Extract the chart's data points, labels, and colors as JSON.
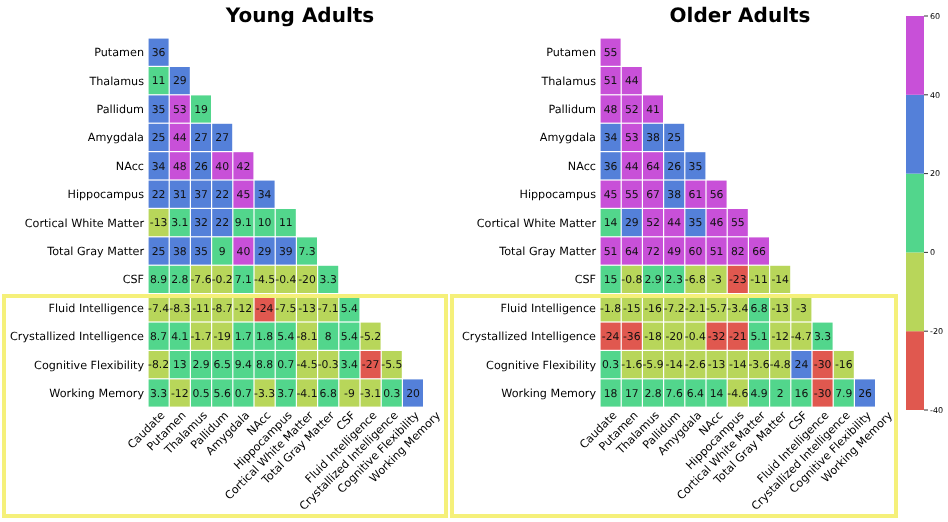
{
  "chart_data": [
    {
      "type": "heatmap",
      "title": "Young Adults",
      "categories": [
        "Caudate",
        "Putamen",
        "Thalamus",
        "Pallidum",
        "Amygdala",
        "NAcc",
        "Hippocampus",
        "Cortical White Matter",
        "Total Gray Matter",
        "CSF",
        "Fluid Intelligence",
        "Crystallized Intelligence",
        "Cognitive Flexibility",
        "Working Memory"
      ],
      "y_categories": [
        "Putamen",
        "Thalamus",
        "Pallidum",
        "Amygdala",
        "NAcc",
        "Hippocampus",
        "Cortical White Matter",
        "Total Gray Matter",
        "CSF",
        "Fluid Intelligence",
        "Crystallized Intelligence",
        "Cognitive Flexibility",
        "Working Memory"
      ],
      "data_labels": true,
      "colors": [
        "#e0584f",
        "#b8d65a",
        "#52d68c",
        "#5480d9",
        "#c850d8"
      ],
      "cells": [
        [
          36,
          null,
          null,
          null,
          null,
          null,
          null,
          null,
          null,
          null,
          null,
          null,
          null,
          null
        ],
        [
          11,
          29,
          null,
          null,
          null,
          null,
          null,
          null,
          null,
          null,
          null,
          null,
          null,
          null
        ],
        [
          35,
          53,
          19,
          null,
          null,
          null,
          null,
          null,
          null,
          null,
          null,
          null,
          null,
          null
        ],
        [
          25,
          44,
          27,
          27,
          null,
          null,
          null,
          null,
          null,
          null,
          null,
          null,
          null,
          null
        ],
        [
          34,
          48,
          26,
          40,
          42,
          null,
          null,
          null,
          null,
          null,
          null,
          null,
          null,
          null
        ],
        [
          22,
          31,
          37,
          22,
          45,
          34,
          null,
          null,
          null,
          null,
          null,
          null,
          null,
          null
        ],
        [
          -13,
          3.1,
          32,
          22,
          9.1,
          10,
          11,
          null,
          null,
          null,
          null,
          null,
          null,
          null
        ],
        [
          25,
          38,
          35,
          9,
          40,
          29,
          39,
          7.3,
          null,
          null,
          null,
          null,
          null,
          null
        ],
        [
          8.9,
          2.8,
          -7.6,
          -0.2,
          7.1,
          -4.5,
          -0.4,
          -20,
          3.3,
          null,
          null,
          null,
          null,
          null
        ],
        [
          -7.4,
          -8.3,
          -11,
          -8.7,
          -12,
          -24,
          -7.5,
          -13,
          -7.1,
          5.4,
          null,
          null,
          null,
          null
        ],
        [
          8.7,
          4.1,
          -1.7,
          -19,
          1.7,
          1.8,
          5.4,
          -8.1,
          8,
          5.4,
          -5.2,
          null,
          null,
          null
        ],
        [
          -8.2,
          13,
          2.9,
          6.5,
          9.4,
          8.8,
          0.7,
          -4.5,
          -0.3,
          3.4,
          -27,
          -5.5,
          null,
          null
        ],
        [
          3.3,
          -12,
          0.5,
          5.6,
          0.7,
          -3.3,
          3.7,
          -4.1,
          6.8,
          -9,
          -3.1,
          0.3,
          20,
          null
        ]
      ]
    },
    {
      "type": "heatmap",
      "title": "Older Adults",
      "categories": [
        "Caudate",
        "Putamen",
        "Thalamus",
        "Pallidum",
        "Amygdala",
        "NAcc",
        "Hippocampus",
        "Cortical White Matter",
        "Total Gray Matter",
        "CSF",
        "Fluid Intelligence",
        "Crystallized Intelligence",
        "Cognitive Flexibility",
        "Working Memory"
      ],
      "y_categories": [
        "Putamen",
        "Thalamus",
        "Pallidum",
        "Amygdala",
        "NAcc",
        "Hippocampus",
        "Cortical White Matter",
        "Total Gray Matter",
        "CSF",
        "Fluid Intelligence",
        "Crystallized Intelligence",
        "Cognitive Flexibility",
        "Working Memory"
      ],
      "data_labels": true,
      "clim": [
        -40,
        60
      ],
      "cticks": [
        -40,
        -20,
        0,
        20,
        40,
        60
      ],
      "colors": [
        "#e0584f",
        "#b8d65a",
        "#52d68c",
        "#5480d9",
        "#c850d8"
      ],
      "cells": [
        [
          55,
          null,
          null,
          null,
          null,
          null,
          null,
          null,
          null,
          null,
          null,
          null,
          null,
          null
        ],
        [
          51,
          44,
          null,
          null,
          null,
          null,
          null,
          null,
          null,
          null,
          null,
          null,
          null,
          null
        ],
        [
          48,
          52,
          41,
          null,
          null,
          null,
          null,
          null,
          null,
          null,
          null,
          null,
          null,
          null
        ],
        [
          34,
          53,
          38,
          25,
          null,
          null,
          null,
          null,
          null,
          null,
          null,
          null,
          null,
          null
        ],
        [
          36,
          44,
          64,
          26,
          35,
          null,
          null,
          null,
          null,
          null,
          null,
          null,
          null,
          null
        ],
        [
          45,
          55,
          67,
          38,
          61,
          56,
          null,
          null,
          null,
          null,
          null,
          null,
          null,
          null
        ],
        [
          14,
          29,
          52,
          44,
          35,
          46,
          55,
          null,
          null,
          null,
          null,
          null,
          null,
          null
        ],
        [
          51,
          64,
          72,
          49,
          60,
          51,
          82,
          66,
          null,
          null,
          null,
          null,
          null,
          null
        ],
        [
          15,
          -0.8,
          2.9,
          2.3,
          -6.8,
          -3,
          -23,
          -11,
          -14,
          null,
          null,
          null,
          null,
          null
        ],
        [
          -1.8,
          -15,
          -16,
          -7.2,
          -2.1,
          -5.7,
          -3.4,
          6.8,
          -13,
          -3,
          null,
          null,
          null,
          null
        ],
        [
          -24,
          -36,
          -18,
          -20,
          -0.4,
          -32,
          -21,
          5.1,
          -12,
          -4.7,
          3.3,
          null,
          null,
          null
        ],
        [
          0.3,
          -1.6,
          -5.9,
          -14,
          -2.6,
          -13,
          -14,
          -3.6,
          -4.8,
          24,
          -30,
          -16,
          null,
          null
        ],
        [
          18,
          17,
          2.8,
          7.6,
          6.4,
          14,
          -4.6,
          4.9,
          2,
          16,
          -30,
          7.9,
          26,
          null
        ]
      ]
    }
  ]
}
